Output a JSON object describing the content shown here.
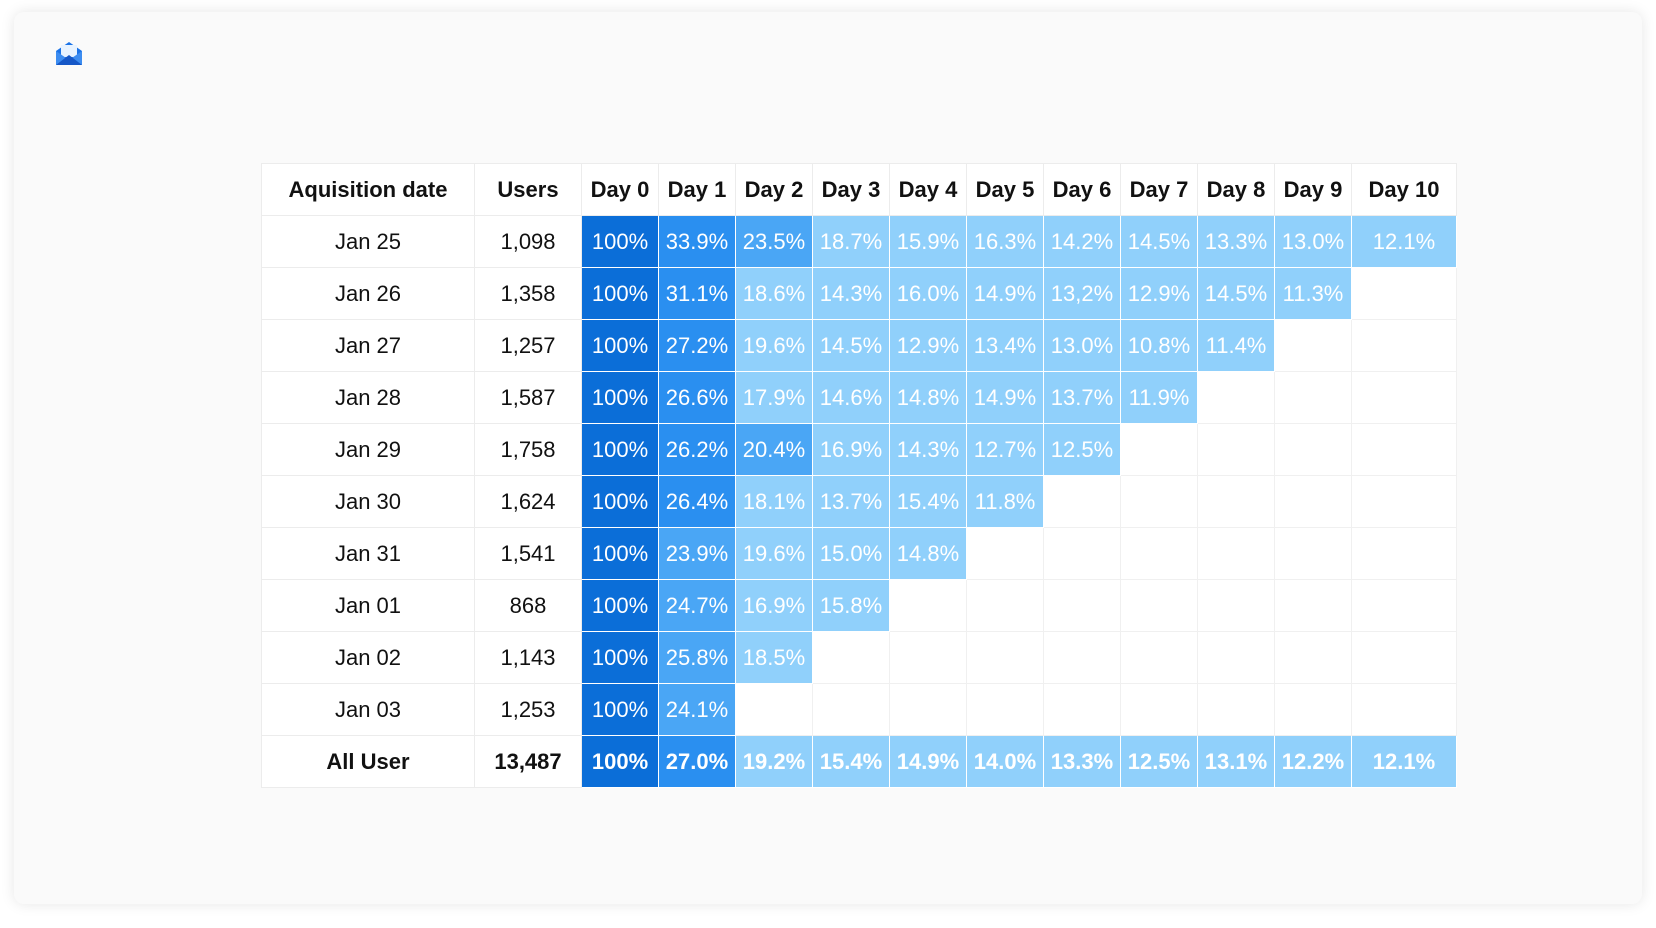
{
  "chart_data": {
    "type": "table",
    "columns": [
      "Aquisition date",
      "Users",
      "Day 0",
      "Day 1",
      "Day 2",
      "Day 3",
      "Day 4",
      "Day 5",
      "Day 6",
      "Day 7",
      "Day 8",
      "Day 9",
      "Day 10"
    ],
    "rows": [
      {
        "date": "Jan 25",
        "users": "1,098",
        "retention": [
          "100%",
          "33.9%",
          "23.5%",
          "18.7%",
          "15.9%",
          "16.3%",
          "14.2%",
          "14.5%",
          "13.3%",
          "13.0%",
          "12.1%"
        ]
      },
      {
        "date": "Jan 26",
        "users": "1,358",
        "retention": [
          "100%",
          "31.1%",
          "18.6%",
          "14.3%",
          "16.0%",
          "14.9%",
          "13,2%",
          "12.9%",
          "14.5%",
          "11.3%"
        ]
      },
      {
        "date": "Jan 27",
        "users": "1,257",
        "retention": [
          "100%",
          "27.2%",
          "19.6%",
          "14.5%",
          "12.9%",
          "13.4%",
          "13.0%",
          "10.8%",
          "11.4%"
        ]
      },
      {
        "date": "Jan 28",
        "users": "1,587",
        "retention": [
          "100%",
          "26.6%",
          "17.9%",
          "14.6%",
          "14.8%",
          "14.9%",
          "13.7%",
          "11.9%"
        ]
      },
      {
        "date": "Jan 29",
        "users": "1,758",
        "retention": [
          "100%",
          "26.2%",
          "20.4%",
          "16.9%",
          "14.3%",
          "12.7%",
          "12.5%"
        ]
      },
      {
        "date": "Jan 30",
        "users": "1,624",
        "retention": [
          "100%",
          "26.4%",
          "18.1%",
          "13.7%",
          "15.4%",
          "11.8%"
        ]
      },
      {
        "date": "Jan 31",
        "users": "1,541",
        "retention": [
          "100%",
          "23.9%",
          "19.6%",
          "15.0%",
          "14.8%"
        ]
      },
      {
        "date": "Jan 01",
        "users": "868",
        "retention": [
          "100%",
          "24.7%",
          "16.9%",
          "15.8%"
        ]
      },
      {
        "date": "Jan 02",
        "users": "1,143",
        "retention": [
          "100%",
          "25.8%",
          "18.5%"
        ]
      },
      {
        "date": "Jan 03",
        "users": "1,253",
        "retention": [
          "100%",
          "24.1%"
        ]
      }
    ],
    "total": {
      "date": "All User",
      "users": "13,487",
      "retention": [
        "100%",
        "27.0%",
        "19.2%",
        "15.4%",
        "14.9%",
        "14.0%",
        "13.3%",
        "12.5%",
        "13.1%",
        "12.2%",
        "12.1%"
      ]
    },
    "color_scale": [
      "#0b6ed8",
      "#2a8ff0",
      "#4aa6f5",
      "#90d0fb"
    ]
  }
}
